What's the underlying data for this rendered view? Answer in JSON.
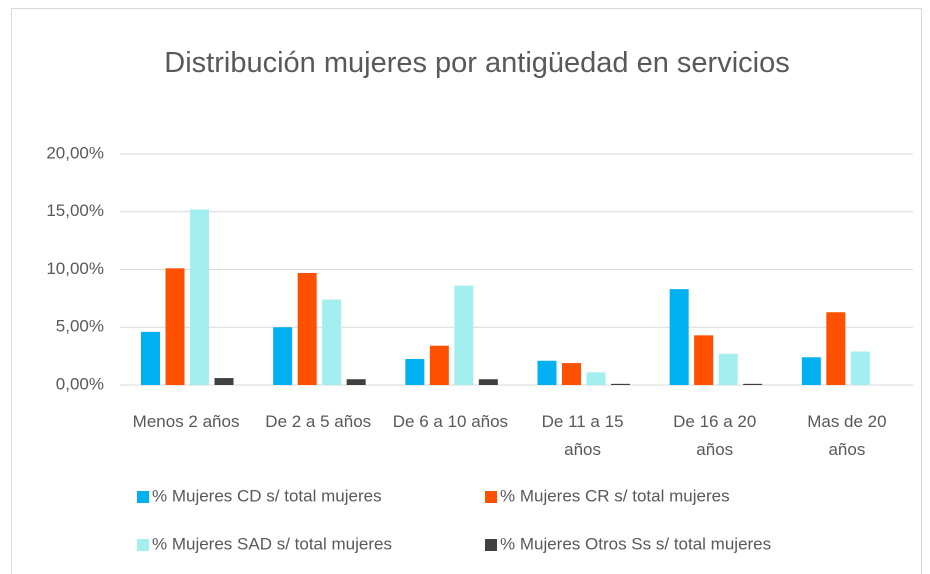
{
  "chart_data": {
    "type": "bar",
    "title": "Distribución mujeres por antigüedad en servicios",
    "categories": [
      "Menos 2 años",
      "De 2 a 5 años",
      "De 6 a 10 años",
      "De 11 a 15 años",
      "De 16 a 20 años",
      "Mas de 20 años"
    ],
    "series": [
      {
        "name": "% Mujeres CD s/ total mujeres",
        "color": "#00b0f0",
        "values": [
          4.6,
          5.0,
          2.25,
          2.1,
          8.3,
          2.4
        ]
      },
      {
        "name": "% Mujeres CR s/ total mujeres",
        "color": "#ff5000",
        "values": [
          10.1,
          9.7,
          3.4,
          1.9,
          4.3,
          6.3
        ]
      },
      {
        "name": "% Mujeres SAD s/ total mujeres",
        "color": "#a3eeee",
        "values": [
          15.2,
          7.4,
          8.6,
          1.1,
          2.7,
          2.9
        ]
      },
      {
        "name": "% Mujeres Otros Ss s/ total mujeres",
        "color": "#404040",
        "values": [
          0.6,
          0.5,
          0.5,
          0.1,
          0.1,
          0
        ]
      }
    ],
    "ylim": [
      0,
      20
    ],
    "yticks": [
      {
        "value": 0,
        "label": "0,00%"
      },
      {
        "value": 5,
        "label": "5,00%"
      },
      {
        "value": 10,
        "label": "10,00%"
      },
      {
        "value": 15,
        "label": "15,00%"
      },
      {
        "value": 20,
        "label": "20,00%"
      }
    ],
    "grid": true
  }
}
